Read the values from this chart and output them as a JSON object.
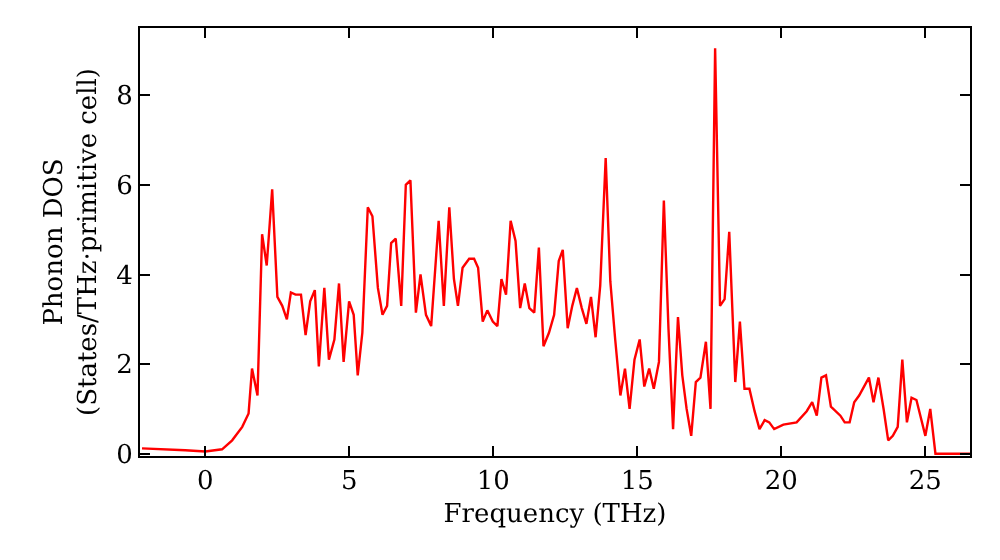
{
  "chart_data": {
    "type": "line",
    "xlabel": "Frequency (THz)",
    "ylabel": "Phonon DOS\n(States/THz·primitive cell)",
    "xlim": [
      -2.27,
      26.55
    ],
    "ylim": [
      -0.05,
      9.5
    ],
    "xticks": [
      0,
      5,
      10,
      15,
      20,
      25
    ],
    "yticks": [
      0,
      2,
      4,
      6,
      8
    ],
    "legend": false,
    "marker": "none",
    "line_style": "solid",
    "series": [
      {
        "color": "#ff0000",
        "x": [
          -2.2,
          -0.7,
          0,
          0.58,
          0.93,
          1.28,
          1.5,
          1.62,
          1.81,
          1.97,
          2.13,
          2.32,
          2.5,
          2.67,
          2.83,
          2.97,
          3.13,
          3.32,
          3.48,
          3.64,
          3.8,
          3.94,
          4.13,
          4.29,
          4.48,
          4.64,
          4.8,
          4.99,
          5.15,
          5.29,
          5.45,
          5.64,
          5.8,
          5.99,
          6.15,
          6.31,
          6.45,
          6.61,
          6.8,
          6.96,
          7.12,
          7.31,
          7.47,
          7.66,
          7.84,
          8.1,
          8.28,
          8.47,
          8.63,
          8.77,
          8.93,
          9.16,
          9.33,
          9.47,
          9.63,
          9.79,
          9.98,
          10.14,
          10.28,
          10.44,
          10.6,
          10.77,
          10.93,
          11.09,
          11.25,
          11.42,
          11.58,
          11.74,
          11.93,
          12.11,
          12.27,
          12.41,
          12.58,
          12.74,
          12.9,
          13.07,
          13.23,
          13.39,
          13.55,
          13.71,
          13.9,
          14.06,
          14.23,
          14.41,
          14.57,
          14.73,
          14.9,
          15.08,
          15.24,
          15.41,
          15.57,
          15.75,
          15.92,
          16.08,
          16.24,
          16.41,
          16.56,
          16.71,
          16.87,
          17.03,
          17.19,
          17.38,
          17.54,
          17.7,
          17.87,
          18.03,
          18.19,
          18.4,
          18.56,
          18.72,
          18.89,
          19.07,
          19.24,
          19.42,
          19.58,
          19.75,
          20.07,
          20.53,
          20.88,
          21.07,
          21.23,
          21.39,
          21.55,
          21.72,
          22.05,
          22.2,
          22.37,
          22.53,
          22.7,
          23.04,
          23.2,
          23.37,
          23.55,
          23.71,
          23.87,
          24.04,
          24.2,
          24.36,
          24.52,
          24.69,
          25.0,
          25.17,
          25.35,
          26.55
        ],
        "values": [
          0.12,
          0.08,
          0.05,
          0.1,
          0.3,
          0.6,
          0.9,
          1.9,
          1.3,
          4.9,
          4.2,
          5.9,
          3.5,
          3.3,
          3.0,
          3.6,
          3.55,
          3.55,
          2.65,
          3.4,
          3.65,
          1.95,
          3.7,
          2.1,
          2.55,
          3.8,
          2.05,
          3.4,
          3.1,
          1.75,
          2.7,
          5.5,
          5.3,
          3.7,
          3.1,
          3.3,
          4.7,
          4.8,
          3.3,
          6.0,
          6.1,
          3.15,
          4.0,
          3.1,
          2.85,
          5.2,
          3.3,
          5.5,
          3.9,
          3.3,
          4.15,
          4.35,
          4.35,
          4.15,
          2.95,
          3.2,
          2.95,
          2.85,
          3.9,
          3.55,
          5.2,
          4.75,
          3.25,
          3.8,
          3.25,
          3.15,
          4.6,
          2.4,
          2.7,
          3.1,
          4.3,
          4.55,
          2.8,
          3.3,
          3.7,
          3.25,
          2.9,
          3.5,
          2.6,
          3.75,
          6.6,
          3.85,
          2.55,
          1.3,
          1.9,
          1.0,
          2.1,
          2.55,
          1.5,
          1.9,
          1.45,
          2.05,
          5.65,
          2.8,
          0.55,
          3.05,
          1.75,
          1.0,
          0.4,
          1.6,
          1.7,
          2.5,
          1.0,
          9.05,
          3.3,
          3.45,
          4.95,
          1.6,
          2.95,
          1.45,
          1.45,
          0.95,
          0.55,
          0.75,
          0.7,
          0.55,
          0.65,
          0.7,
          0.95,
          1.15,
          0.85,
          1.7,
          1.75,
          1.05,
          0.85,
          0.7,
          0.7,
          1.15,
          1.3,
          1.7,
          1.15,
          1.7,
          1.0,
          0.3,
          0.4,
          0.6,
          2.1,
          0.7,
          1.25,
          1.2,
          0.4,
          1.0,
          0,
          0
        ]
      }
    ]
  }
}
